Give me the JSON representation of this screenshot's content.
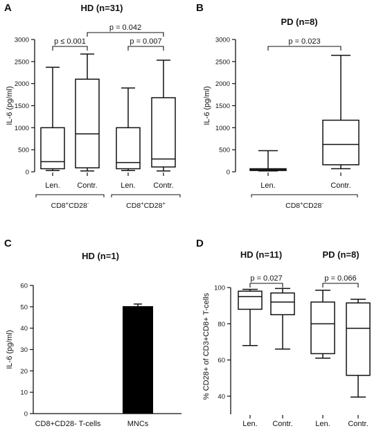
{
  "chart_data": [
    {
      "panel": "A",
      "type": "box",
      "title": "HD (n=31)",
      "ylabel": "IL-6 (pg/ml)",
      "ylim": [
        0,
        3000
      ],
      "yticks": [
        0,
        500,
        1000,
        1500,
        2000,
        2500,
        3000
      ],
      "categories": [
        "Len.",
        "Contr.",
        "Len.",
        "Contr."
      ],
      "boxes": [
        {
          "min": 30,
          "q1": 70,
          "median": 230,
          "q3": 1000,
          "max": 2370
        },
        {
          "min": 20,
          "q1": 90,
          "median": 860,
          "q3": 2100,
          "max": 2670
        },
        {
          "min": 30,
          "q1": 70,
          "median": 210,
          "q3": 1000,
          "max": 1900
        },
        {
          "min": 20,
          "q1": 110,
          "median": 290,
          "q3": 1680,
          "max": 2530
        }
      ],
      "groups": [
        {
          "label_main": "CD8",
          "label_sup1": "+",
          "label_mid": "CD28",
          "label_sup2": "-",
          "from": 0,
          "to": 1
        },
        {
          "label_main": "CD8",
          "label_sup1": "+",
          "label_mid": "CD28",
          "label_sup2": "+",
          "from": 2,
          "to": 3
        }
      ],
      "comparisons": [
        {
          "from": 0,
          "to": 1,
          "label": "p ≤ 0.001",
          "y": 2880,
          "level": 0
        },
        {
          "from": 2,
          "to": 3,
          "label": "p = 0.007",
          "y": 2880,
          "level": 0
        },
        {
          "from": 1,
          "to": 3,
          "label": "p = 0.042",
          "y": 3150,
          "level": 1
        }
      ]
    },
    {
      "panel": "B",
      "type": "box",
      "title": "PD (n=8)",
      "ylabel": "IL-6 (pg/ml)",
      "ylim": [
        0,
        3000
      ],
      "yticks": [
        0,
        500,
        1000,
        1500,
        2000,
        2500,
        3000
      ],
      "categories": [
        "Len.",
        "Contr."
      ],
      "boxes": [
        {
          "min": 20,
          "q1": 30,
          "median": 50,
          "q3": 70,
          "max": 480
        },
        {
          "min": 70,
          "q1": 160,
          "median": 620,
          "q3": 1170,
          "max": 2640
        }
      ],
      "groups": [
        {
          "label_main": "CD8",
          "label_sup1": "+",
          "label_mid": "CD28",
          "label_sup2": "-",
          "from": 0,
          "to": 1
        }
      ],
      "comparisons": [
        {
          "from": 0,
          "to": 1,
          "label": "p = 0.023",
          "y": 2830,
          "level": 0
        }
      ]
    },
    {
      "panel": "C",
      "type": "bar",
      "title": "HD (n=1)",
      "ylabel": "IL-6 (pg/ml)",
      "ylim": [
        0,
        60
      ],
      "yticks": [
        0,
        10,
        20,
        30,
        40,
        50,
        60
      ],
      "categories": [
        "CD8+CD28- T-cells",
        "MNCs"
      ],
      "values": [
        0,
        50.3
      ],
      "errors": [
        0,
        1.0
      ],
      "bar_color": "#000000"
    },
    {
      "panel": "D",
      "type": "box",
      "title_left": "HD (n=11)",
      "title_right": "PD (n=8)",
      "ylabel": "% CD28+ of CD3+CD8+ T-cells",
      "ylim": [
        30,
        105
      ],
      "yticks": [
        40,
        60,
        80,
        100
      ],
      "categories": [
        "Len.",
        "Contr.",
        "Len.",
        "Contr."
      ],
      "boxes": [
        {
          "min": 68,
          "q1": 88,
          "median": 95,
          "q3": 98,
          "max": 99
        },
        {
          "min": 66,
          "q1": 85,
          "median": 92,
          "q3": 97,
          "max": 99.5
        },
        {
          "min": 61,
          "q1": 63.5,
          "median": 80,
          "q3": 92,
          "max": 98.5
        },
        {
          "min": 39.5,
          "q1": 51.5,
          "median": 77.5,
          "q3": 91.5,
          "max": 93.5
        }
      ],
      "comparisons": [
        {
          "from": 0,
          "to": 1,
          "label": "p = 0.027",
          "y": 102,
          "level": 0
        },
        {
          "from": 2,
          "to": 3,
          "label": "p = 0.066",
          "y": 102,
          "level": 0
        }
      ]
    }
  ],
  "panels": {
    "a": {
      "letter": "A",
      "title": "HD (n=31)"
    },
    "b": {
      "letter": "B",
      "title": "PD (n=8)"
    },
    "c": {
      "letter": "C",
      "title": "HD (n=1)"
    },
    "d": {
      "letter": "D",
      "title_left": "HD (n=11)",
      "title_right": "PD (n=8)"
    }
  }
}
